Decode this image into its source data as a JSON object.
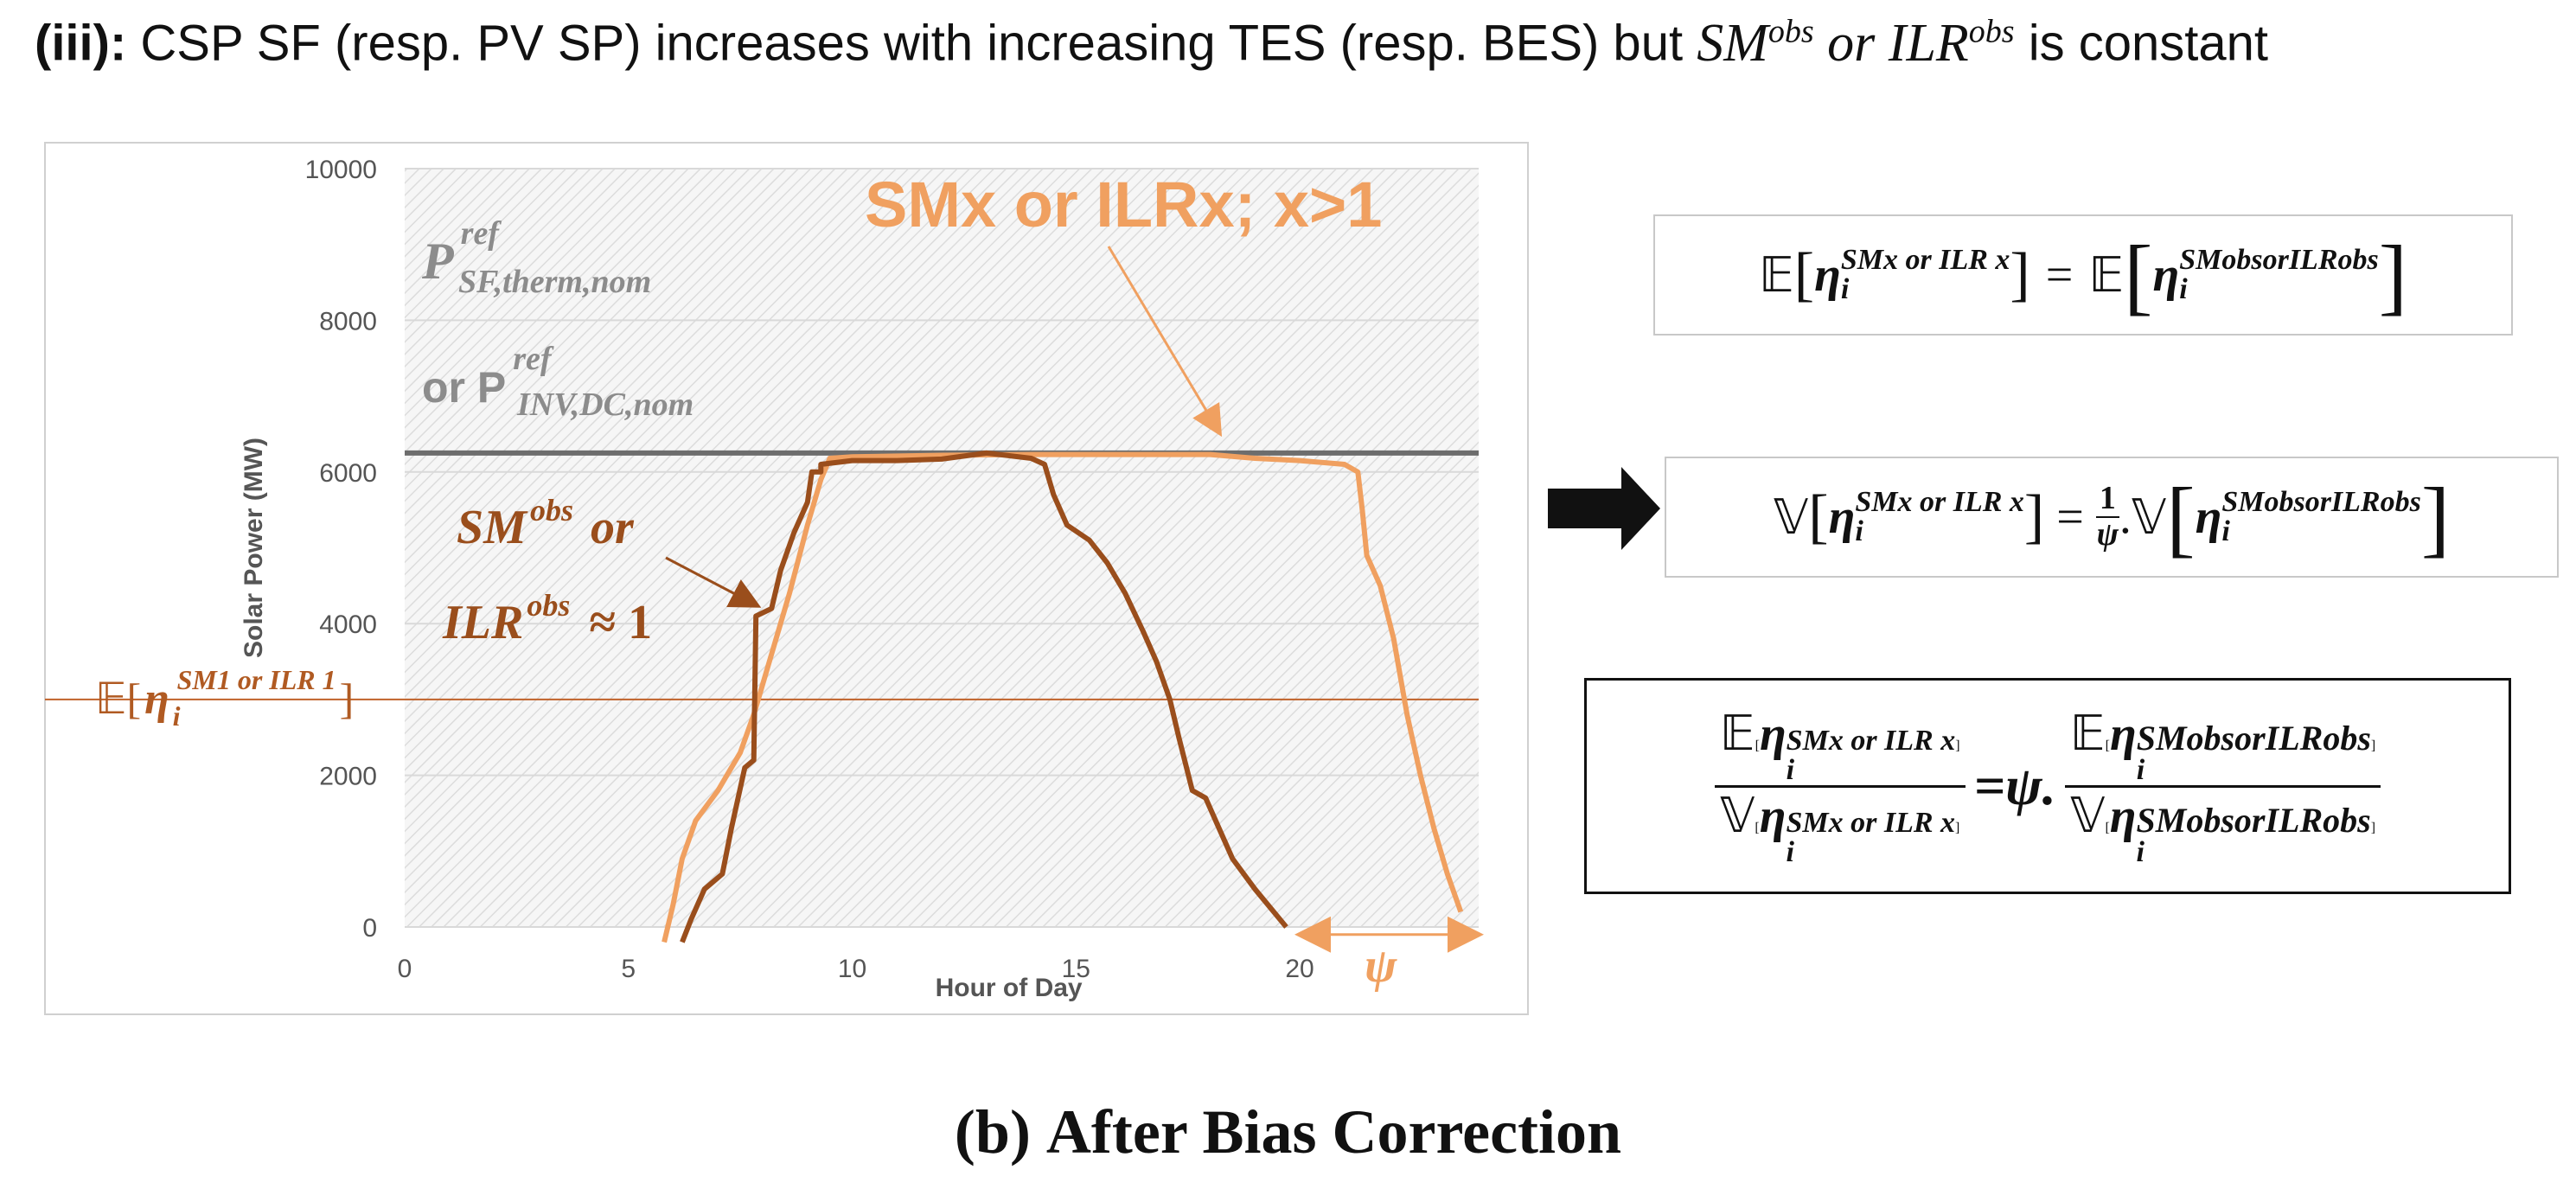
{
  "heading": {
    "prefix": "(iii):",
    "text_a": "CSP SF (resp. PV SP) increases with increasing TES (resp. BES) but",
    "sm_obs": "SM",
    "or_word": "or",
    "ilr_obs": "ILR",
    "sup_obs": "obs",
    "text_b": "is constant"
  },
  "chart_data": {
    "type": "line",
    "title": "",
    "xlabel": "Hour of Day",
    "ylabel": "Solar Power (MW)",
    "xlim": [
      0,
      24
    ],
    "ylim": [
      0,
      10000
    ],
    "x_ticks": [
      0,
      5,
      10,
      15,
      20
    ],
    "y_ticks": [
      0,
      2000,
      4000,
      6000,
      8000,
      10000
    ],
    "grid": "horizontal",
    "reference_line": {
      "value": 6250,
      "color": "#6d6d6d"
    },
    "mean_line": {
      "value": 3000,
      "color": "#c0622a"
    },
    "series": [
      {
        "name": "SMx or ILRx; x>1",
        "color": "#f0a060",
        "points": [
          [
            5.8,
            -200
          ],
          [
            6.0,
            300
          ],
          [
            6.2,
            900
          ],
          [
            6.5,
            1400
          ],
          [
            7.0,
            1800
          ],
          [
            7.5,
            2300
          ],
          [
            7.8,
            2800
          ],
          [
            8.2,
            3600
          ],
          [
            8.6,
            4400
          ],
          [
            9.0,
            5300
          ],
          [
            9.3,
            5900
          ],
          [
            9.5,
            6180
          ],
          [
            10,
            6200
          ],
          [
            12,
            6220
          ],
          [
            14,
            6230
          ],
          [
            16,
            6230
          ],
          [
            18,
            6230
          ],
          [
            19,
            6180
          ],
          [
            20,
            6150
          ],
          [
            21,
            6100
          ],
          [
            21.3,
            6000
          ],
          [
            21.4,
            5500
          ],
          [
            21.5,
            4900
          ],
          [
            21.8,
            4500
          ],
          [
            22.1,
            3800
          ],
          [
            22.4,
            2800
          ],
          [
            22.7,
            2000
          ],
          [
            23.0,
            1300
          ],
          [
            23.3,
            700
          ],
          [
            23.6,
            200
          ]
        ]
      },
      {
        "name": "SMobs or ILRobs ≈ 1",
        "color": "#9a4e1c",
        "points": [
          [
            6.2,
            -200
          ],
          [
            6.4,
            100
          ],
          [
            6.7,
            500
          ],
          [
            7.1,
            700
          ],
          [
            7.3,
            1300
          ],
          [
            7.6,
            2100
          ],
          [
            7.8,
            2200
          ],
          [
            7.85,
            4100
          ],
          [
            8.2,
            4200
          ],
          [
            8.4,
            4700
          ],
          [
            8.7,
            5200
          ],
          [
            9.0,
            5600
          ],
          [
            9.1,
            6000
          ],
          [
            9.3,
            6000
          ],
          [
            9.3,
            6100
          ],
          [
            10,
            6150
          ],
          [
            11,
            6150
          ],
          [
            12,
            6170
          ],
          [
            13,
            6250
          ],
          [
            14,
            6180
          ],
          [
            14.3,
            6100
          ],
          [
            14.5,
            5700
          ],
          [
            14.8,
            5300
          ],
          [
            15.3,
            5100
          ],
          [
            15.7,
            4800
          ],
          [
            16.1,
            4400
          ],
          [
            16.5,
            3900
          ],
          [
            16.8,
            3500
          ],
          [
            17.1,
            3000
          ],
          [
            17.3,
            2500
          ],
          [
            17.6,
            1800
          ],
          [
            17.9,
            1700
          ],
          [
            18.2,
            1300
          ],
          [
            18.5,
            900
          ],
          [
            19,
            500
          ],
          [
            19.7,
            0
          ]
        ]
      }
    ],
    "annotations": {
      "sm_x": "SMx or ILRx;  x>1",
      "p_sf_base": "P",
      "p_sf_sup": "ref",
      "p_sf_sub": "SF,therm,nom",
      "p_inv_prefix": "or P",
      "p_inv_sup": "ref",
      "p_inv_sub": "INV,DC,nom",
      "sm_obs_line1": "SM",
      "sm_obs_sup": "obs",
      "sm_obs_or": "or",
      "ilr_obs_line2": "ILR",
      "ilr_obs_sup": "obs",
      "ilr_approx": "≈ 1",
      "mean_bb": "𝔼[",
      "mean_eta": "η",
      "mean_sub": "i",
      "mean_sup": "SM1 or ILR 1",
      "mean_close": "]",
      "psi": "ψ"
    }
  },
  "equations": {
    "eq1": {
      "lhs_op": "𝔼",
      "lhs_sup": "SMx or ILR x",
      "equals": "=",
      "rhs_op": "𝔼",
      "rhs_sup": "SMobsorILRobs"
    },
    "eq2": {
      "lhs_op": "𝕍",
      "lhs_sup": "SMx or ILR x",
      "equals": "=",
      "frac_num": "1",
      "frac_den": "ψ",
      "rhs_op": "𝕍",
      "rhs_sup": "SMobsorILRobs"
    },
    "eq3": {
      "num_op": "𝔼",
      "den_op": "𝕍",
      "sup_x": "SMx or ILR x",
      "equals": "=ψ.",
      "sup_obs": "SMobsorILRobs"
    },
    "eta": "η",
    "sub_i": "i"
  },
  "caption": {
    "label": "(b)",
    "text": "After Bias Correction"
  }
}
